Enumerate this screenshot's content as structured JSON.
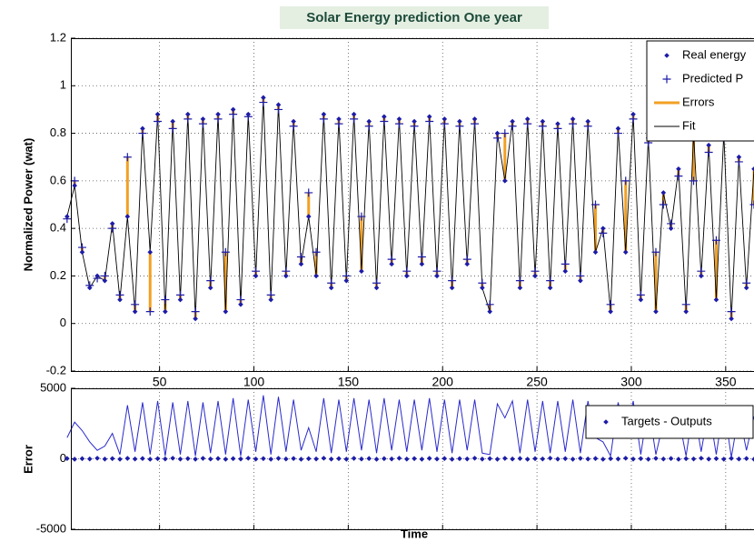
{
  "chart_data": [
    {
      "type": "line",
      "title": "Solar Energy prediction One year",
      "y_label": "Normalized Power (wat)",
      "x": [
        1,
        5,
        9,
        13,
        17,
        21,
        25,
        29,
        33,
        37,
        41,
        45,
        49,
        53,
        57,
        61,
        65,
        69,
        73,
        77,
        81,
        85,
        89,
        93,
        97,
        101,
        105,
        109,
        113,
        117,
        121,
        125,
        129,
        133,
        137,
        141,
        145,
        149,
        153,
        157,
        161,
        165,
        169,
        173,
        177,
        181,
        185,
        189,
        193,
        197,
        201,
        205,
        209,
        213,
        217,
        221,
        225,
        229,
        233,
        237,
        241,
        245,
        249,
        253,
        257,
        261,
        265,
        269,
        273,
        277,
        281,
        285,
        289,
        293,
        297,
        301,
        305,
        309,
        313,
        317,
        321,
        325,
        329,
        333,
        337,
        341,
        345,
        349,
        353,
        357,
        361,
        365
      ],
      "series": [
        {
          "name": "Real energy",
          "color": "#1c1ca8",
          "marker": "diamond",
          "values": [
            0.45,
            0.58,
            0.3,
            0.15,
            0.2,
            0.18,
            0.42,
            0.1,
            0.45,
            0.05,
            0.82,
            0.3,
            0.88,
            0.05,
            0.85,
            0.1,
            0.88,
            0.02,
            0.86,
            0.15,
            0.88,
            0.05,
            0.9,
            0.08,
            0.88,
            0.2,
            0.95,
            0.1,
            0.92,
            0.2,
            0.85,
            0.25,
            0.45,
            0.2,
            0.88,
            0.15,
            0.86,
            0.18,
            0.88,
            0.22,
            0.85,
            0.15,
            0.87,
            0.25,
            0.86,
            0.2,
            0.85,
            0.25,
            0.87,
            0.2,
            0.86,
            0.15,
            0.85,
            0.25,
            0.86,
            0.15,
            0.05,
            0.8,
            0.6,
            0.85,
            0.15,
            0.86,
            0.2,
            0.85,
            0.15,
            0.84,
            0.22,
            0.86,
            0.18,
            0.85,
            0.3,
            0.4,
            0.05,
            0.82,
            0.3,
            0.88,
            0.1,
            0.78,
            0.05,
            0.55,
            0.4,
            0.65,
            0.05,
            0.8,
            0.2,
            0.75,
            0.1,
            0.8,
            0.02,
            0.7,
            0.15,
            0.65
          ]
        },
        {
          "name": "Predicted P",
          "color": "#1c1ca8",
          "marker": "plus",
          "values": [
            0.44,
            0.6,
            0.32,
            0.16,
            0.19,
            0.2,
            0.4,
            0.12,
            0.7,
            0.08,
            0.8,
            0.05,
            0.85,
            0.1,
            0.82,
            0.12,
            0.86,
            0.05,
            0.84,
            0.18,
            0.86,
            0.3,
            0.88,
            0.1,
            0.87,
            0.22,
            0.93,
            0.12,
            0.9,
            0.22,
            0.83,
            0.28,
            0.55,
            0.3,
            0.86,
            0.17,
            0.84,
            0.2,
            0.86,
            0.45,
            0.83,
            0.17,
            0.85,
            0.27,
            0.84,
            0.22,
            0.83,
            0.28,
            0.85,
            0.22,
            0.84,
            0.18,
            0.83,
            0.27,
            0.84,
            0.17,
            0.08,
            0.78,
            0.8,
            0.83,
            0.18,
            0.84,
            0.22,
            0.83,
            0.18,
            0.82,
            0.25,
            0.84,
            0.2,
            0.83,
            0.5,
            0.38,
            0.08,
            0.8,
            0.6,
            0.86,
            0.12,
            0.76,
            0.3,
            0.5,
            0.42,
            0.62,
            0.08,
            0.6,
            0.22,
            0.72,
            0.35,
            0.78,
            0.05,
            0.68,
            0.17,
            0.5
          ]
        }
      ],
      "errors": {
        "name": "Errors",
        "color": "#f2a024"
      },
      "fit": {
        "name": "Fit",
        "color": "#000000"
      },
      "xlim": [
        3,
        365
      ],
      "xticks": [
        50,
        100,
        150,
        200,
        250,
        300,
        350
      ],
      "ylim": [
        -0.2,
        1.2
      ],
      "yticks": [
        -0.2,
        0,
        0.2,
        0.4,
        0.6,
        0.8,
        1,
        1.2
      ],
      "grid": true,
      "legend": "upper right"
    },
    {
      "type": "line",
      "x_label": "Time",
      "y_label": "Error",
      "x": [
        1,
        5,
        9,
        13,
        17,
        21,
        25,
        29,
        33,
        37,
        41,
        45,
        49,
        53,
        57,
        61,
        65,
        69,
        73,
        77,
        81,
        85,
        89,
        93,
        97,
        101,
        105,
        109,
        113,
        117,
        121,
        125,
        129,
        133,
        137,
        141,
        145,
        149,
        153,
        157,
        161,
        165,
        169,
        173,
        177,
        181,
        185,
        189,
        193,
        197,
        201,
        205,
        209,
        213,
        217,
        221,
        225,
        229,
        233,
        237,
        241,
        245,
        249,
        253,
        257,
        261,
        265,
        269,
        273,
        277,
        281,
        285,
        289,
        293,
        297,
        301,
        305,
        309,
        313,
        317,
        321,
        325,
        329,
        333,
        337,
        341,
        345,
        349,
        353,
        357,
        361,
        365
      ],
      "series": [
        {
          "name": "Targets - Outputs",
          "color": "#1c1ca8",
          "marker": "diamond",
          "values": [
            20,
            -30,
            10,
            -10,
            40,
            -20,
            15,
            -25,
            30,
            -15,
            20,
            -30,
            10,
            -10,
            40,
            -20,
            15,
            -25,
            30,
            -15,
            20,
            -30,
            10,
            -10,
            40,
            -20,
            15,
            -25,
            30,
            -15,
            20,
            -30,
            10,
            -10,
            40,
            -20,
            15,
            -25,
            30,
            -15,
            20,
            -30,
            10,
            -10,
            40,
            -20,
            15,
            -25,
            30,
            -15,
            20,
            -30,
            10,
            -10,
            40,
            -20,
            15,
            -25,
            30,
            -15,
            20,
            -30,
            10,
            -10,
            40,
            -20,
            15,
            -25,
            30,
            -15,
            20,
            -30,
            10,
            -10,
            40,
            -20,
            15,
            -25,
            30,
            -15,
            20,
            -30,
            10,
            -10,
            40,
            -20,
            15,
            -25,
            30,
            -15,
            20,
            -30
          ]
        },
        {
          "color": "#2a2acc",
          "marker": "line",
          "values": [
            1500,
            2600,
            2000,
            1200,
            600,
            900,
            1800,
            300,
            3800,
            500,
            4000,
            300,
            4100,
            200,
            4000,
            300,
            4100,
            200,
            4000,
            400,
            4100,
            300,
            4300,
            200,
            4200,
            500,
            4500,
            300,
            4400,
            500,
            4200,
            600,
            2200,
            500,
            4300,
            400,
            4200,
            500,
            4300,
            600,
            4200,
            400,
            4300,
            600,
            4200,
            500,
            4200,
            600,
            4300,
            500,
            4200,
            400,
            4200,
            600,
            4200,
            400,
            300,
            3900,
            2900,
            4100,
            400,
            4200,
            500,
            4100,
            400,
            4100,
            500,
            4200,
            400,
            4100,
            1500,
            1200,
            200,
            4000,
            1500,
            4100,
            300,
            3800,
            300,
            2600,
            2000,
            3000,
            200,
            3800,
            500,
            3600,
            300,
            3800,
            100,
            3300,
            600,
            3000
          ]
        }
      ],
      "xlim": [
        3,
        365
      ],
      "xticks": [
        50,
        100,
        150,
        200,
        250,
        300,
        350
      ],
      "ylim": [
        -5000,
        5000
      ],
      "yticks": [
        -5000,
        0,
        5000
      ],
      "grid": true,
      "legend": "upper right"
    }
  ]
}
